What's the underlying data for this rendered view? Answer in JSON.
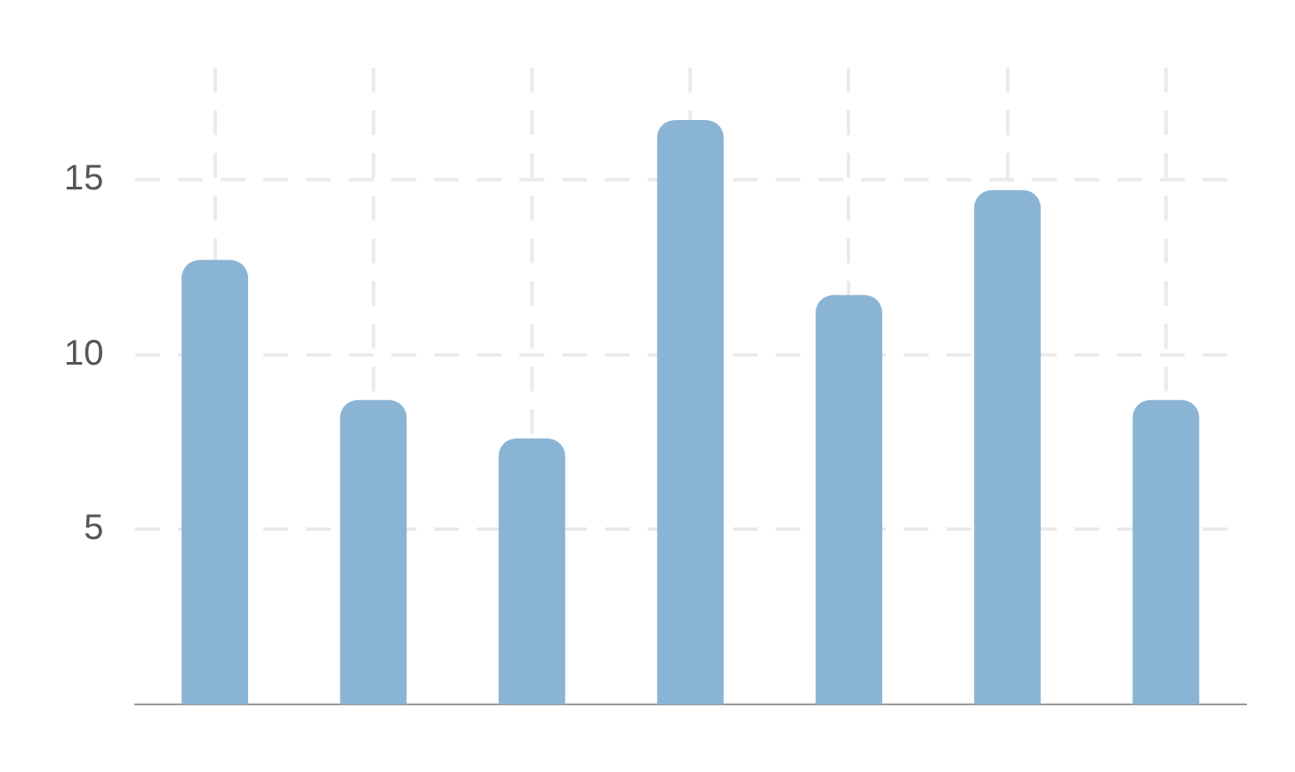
{
  "chart_data": {
    "type": "bar",
    "categories": [
      null,
      null,
      null,
      null,
      null,
      null,
      null
    ],
    "values": [
      12.7,
      8.7,
      7.6,
      16.7,
      11.7,
      14.7,
      8.7
    ],
    "color": "#8ab4d4",
    "ylim": [
      0,
      18.2
    ],
    "yticks": [
      5,
      10,
      15
    ],
    "grid": true,
    "tick_labels": "y"
  }
}
